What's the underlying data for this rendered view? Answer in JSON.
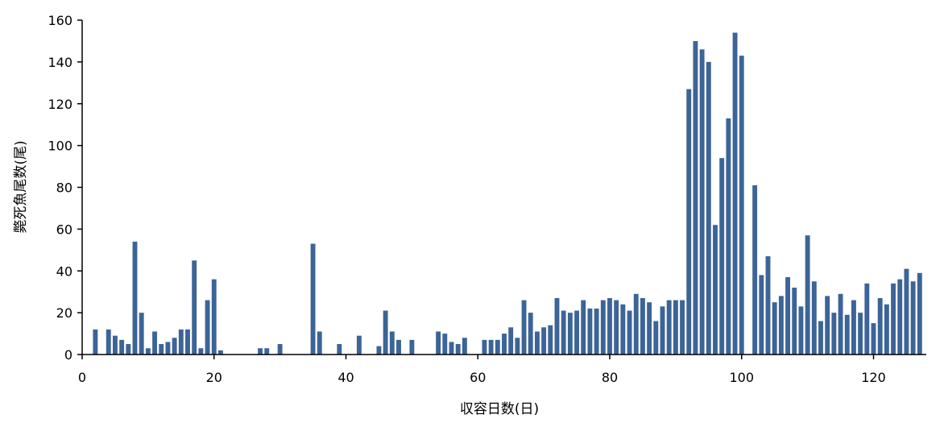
{
  "chart_data": {
    "type": "bar",
    "title": "",
    "xlabel": "収容日数(日)",
    "ylabel": "斃死魚尾数(尾)",
    "xlim": [
      0,
      128
    ],
    "ylim": [
      0,
      160
    ],
    "xticks": [
      0,
      20,
      40,
      60,
      80,
      100,
      120
    ],
    "yticks": [
      0,
      20,
      40,
      60,
      80,
      100,
      120,
      140,
      160
    ],
    "grid": false,
    "legend": "none",
    "bar_color": "#3c6497",
    "series": [
      {
        "x": [
          2,
          4,
          5,
          6,
          7,
          8,
          9,
          10,
          11,
          12,
          13,
          14,
          15,
          16,
          17,
          18,
          19,
          20,
          21,
          27,
          28,
          30,
          35,
          36,
          39,
          42,
          45,
          46,
          47,
          48,
          50,
          54,
          55,
          56,
          57,
          58,
          61,
          62,
          63,
          64,
          65,
          66,
          67,
          68,
          69,
          70,
          71,
          72,
          73,
          74,
          75,
          76,
          77,
          78,
          79,
          80,
          81,
          82,
          83,
          84,
          85,
          86,
          87,
          88,
          89,
          90,
          91,
          92,
          93,
          94,
          95,
          96,
          97,
          98,
          99,
          100,
          102,
          103,
          104,
          105,
          106,
          107,
          108,
          109,
          110,
          111,
          112,
          113,
          114,
          115,
          116,
          117,
          118,
          119,
          120,
          121,
          122,
          123,
          124,
          125,
          126,
          127
        ],
        "values": [
          12,
          12,
          9,
          7,
          5,
          54,
          20,
          3,
          11,
          5,
          6,
          8,
          12,
          12,
          45,
          3,
          26,
          36,
          2,
          3,
          3,
          5,
          53,
          11,
          5,
          9,
          4,
          21,
          11,
          7,
          7,
          11,
          10,
          6,
          5,
          8,
          7,
          7,
          7,
          10,
          13,
          8,
          26,
          20,
          11,
          13,
          14,
          27,
          21,
          20,
          21,
          26,
          22,
          22,
          26,
          27,
          26,
          24,
          21,
          29,
          27,
          25,
          16,
          23,
          26,
          26,
          26,
          127,
          150,
          146,
          140,
          62,
          94,
          113,
          154,
          143,
          81,
          38,
          47,
          25,
          28,
          37,
          32,
          23,
          57,
          35,
          16,
          28,
          20,
          29,
          19,
          26,
          20,
          34,
          15,
          27,
          24,
          34,
          36,
          41,
          35,
          39
        ]
      }
    ]
  }
}
